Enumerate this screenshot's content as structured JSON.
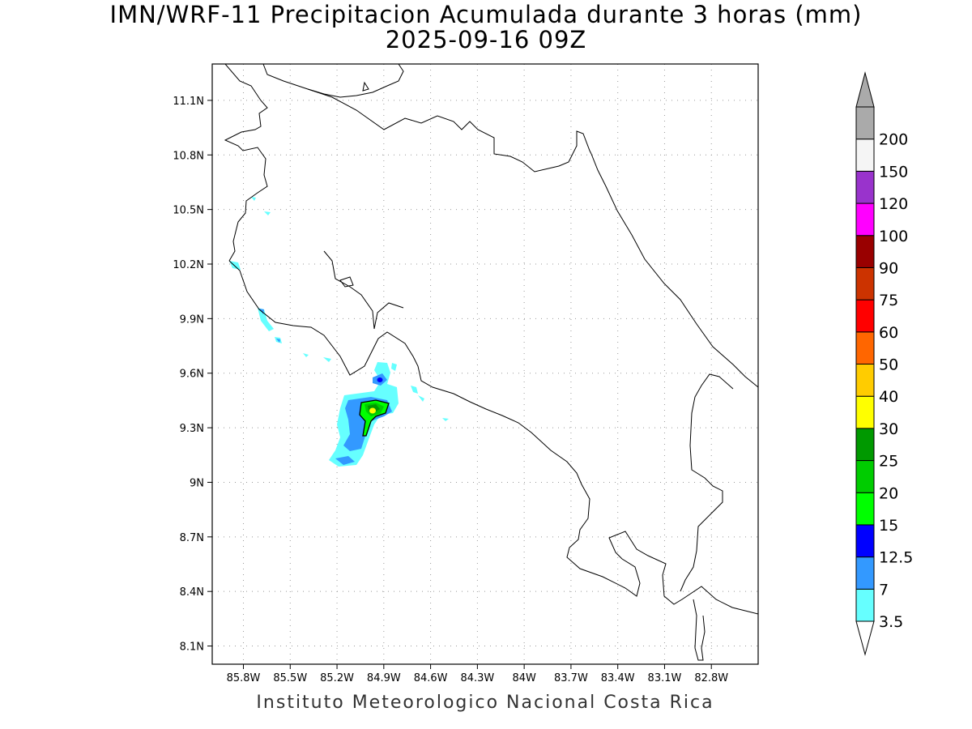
{
  "title_line1": "IMN/WRF-11 Precipitacion Acumulada durante 3 horas (mm)",
  "title_line2": "2025-09-16 09Z",
  "footer": "Instituto Meteorologico Nacional Costa Rica",
  "map": {
    "lon_range": [
      -86.0,
      -82.5
    ],
    "lat_range": [
      8.0,
      11.3
    ],
    "lon_ticks": [
      "85.8W",
      "85.5W",
      "85.2W",
      "84.9W",
      "84.6W",
      "84.3W",
      "84W",
      "83.7W",
      "83.4W",
      "83.1W",
      "82.8W"
    ],
    "lat_ticks": [
      "11.1N",
      "10.8N",
      "10.5N",
      "10.2N",
      "9.9N",
      "9.6N",
      "9.3N",
      "9N",
      "8.7N",
      "8.4N",
      "8.1N"
    ],
    "grid": "dotted"
  },
  "colorbar": {
    "labels": [
      "3.5",
      "7",
      "12.5",
      "15",
      "20",
      "25",
      "30",
      "40",
      "50",
      "60",
      "75",
      "90",
      "100",
      "120",
      "150",
      "200"
    ],
    "colors": [
      "#66ffff",
      "#3399ff",
      "#0000ff",
      "#00ff00",
      "#00cc00",
      "#009900",
      "#ffff00",
      "#ffcc00",
      "#ff6600",
      "#ff0000",
      "#cc3300",
      "#990000",
      "#ff00ff",
      "#9933cc",
      "#f5f5f5",
      "#aaaaaa"
    ]
  }
}
